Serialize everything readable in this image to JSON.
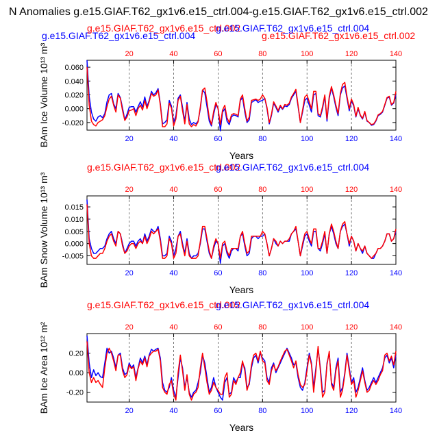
{
  "figure_title": "N Anomalies g.e15.GIAF.T62_gx1v6.e15_ctrl.004-g.e15.GIAF.T62_gx1v6.e15_ctrl.002",
  "colors": {
    "red": "#ff0000",
    "blue": "#0000ff",
    "black": "#000000",
    "grid": "#555555"
  },
  "chart_data": [
    {
      "type": "line",
      "ylabel": "BAm Ice Volume 10¹³ m³",
      "xlabel": "Years",
      "ylim": [
        -0.031,
        0.07
      ],
      "yticks": [
        -0.02,
        0.0,
        0.02,
        0.04,
        0.06
      ],
      "ytick_labels": [
        "-0.020",
        "0.000",
        "0.020",
        "0.040",
        "0.060"
      ],
      "xlim": [
        1,
        140
      ],
      "xticks": [
        20,
        40,
        60,
        80,
        100,
        120,
        140
      ],
      "xtick_labels": [
        "20",
        "40",
        "60",
        "80",
        "100",
        "120",
        "140"
      ],
      "grid_x": [
        20,
        40,
        60,
        80,
        100,
        120
      ],
      "top_labels": {
        "red": "g.e15.GIAF.T62_gx1v6.e15_ctrl.002",
        "blue": "g.e15.GIAF.T62_gx1v6.e15_ctrl.004"
      },
      "series": [
        {
          "name": "g.e15.GIAF.T62_gx1v6.e15_ctrl.004",
          "color": "blue",
          "values": [
            0.07,
            0.018,
            -0.005,
            -0.015,
            -0.018,
            -0.012,
            -0.01,
            -0.013,
            -0.007,
            0.01,
            0.02,
            0.022,
            0.007,
            0.0,
            0.022,
            0.016,
            0.001,
            -0.016,
            -0.008,
            0.002,
            0.003,
            0.003,
            -0.005,
            0.003,
            0.01,
            0.002,
            0.017,
            0.003,
            0.012,
            0.025,
            0.02,
            0.023,
            0.029,
            0.007,
            -0.022,
            -0.02,
            -0.016,
            0.012,
            0.004,
            -0.02,
            -0.01,
            0.015,
            0.02,
            0.002,
            -0.018,
            0.009,
            -0.015,
            -0.023,
            -0.02,
            -0.022,
            -0.018,
            0.0,
            0.027,
            0.023,
            0.003,
            -0.018,
            -0.025,
            -0.008,
            0.006,
            0.0,
            -0.032,
            -0.005,
            0.0,
            -0.018,
            -0.023,
            -0.012,
            -0.009,
            -0.01,
            -0.012,
            0.012,
            0.016,
            -0.005,
            -0.02,
            -0.016,
            0.009,
            0.011,
            0.013,
            0.009,
            0.011,
            0.012,
            0.015,
            0.0,
            -0.022,
            -0.01,
            0.008,
            0.002,
            -0.005,
            0.003,
            -0.001,
            0.004,
            0.003,
            0.006,
            0.015,
            0.02,
            0.025,
            0.003,
            -0.02,
            -0.005,
            0.012,
            0.015,
            0.005,
            -0.005,
            0.02,
            0.022,
            -0.01,
            -0.012,
            0.0,
            0.018,
            -0.018,
            0.015,
            0.03,
            0.017,
            0.002,
            -0.01,
            0.02,
            0.03,
            0.033,
            0.015,
            -0.003,
            0.012,
            0.004,
            -0.012,
            0.0,
            -0.01,
            -0.015,
            -0.005,
            -0.018,
            -0.02,
            -0.024,
            -0.023,
            -0.018,
            -0.01,
            -0.008,
            -0.005,
            0.005,
            0.015,
            0.017,
            0.005,
            0.008,
            0.02
          ]
        },
        {
          "name": "g.e15.GIAF.T62_gx1v6.e15_ctrl.002",
          "color": "red",
          "values": [
            0.06,
            0.005,
            -0.018,
            -0.023,
            -0.025,
            -0.02,
            -0.018,
            -0.016,
            -0.01,
            0.003,
            0.014,
            0.018,
            0.005,
            -0.005,
            0.02,
            0.015,
            -0.003,
            -0.017,
            -0.012,
            -0.003,
            -0.002,
            0.0,
            -0.01,
            0.0,
            0.005,
            -0.002,
            0.012,
            0.0,
            0.01,
            0.022,
            0.018,
            0.02,
            0.027,
            0.005,
            -0.026,
            -0.026,
            -0.022,
            0.008,
            0.001,
            -0.025,
            -0.015,
            0.012,
            0.018,
            -0.003,
            -0.022,
            0.006,
            -0.022,
            -0.026,
            -0.023,
            -0.025,
            -0.019,
            0.003,
            0.027,
            0.03,
            0.01,
            -0.013,
            -0.023,
            -0.004,
            0.009,
            0.0,
            -0.023,
            -0.002,
            0.005,
            -0.013,
            -0.02,
            -0.009,
            -0.007,
            -0.008,
            -0.01,
            0.014,
            0.02,
            0.0,
            -0.018,
            -0.012,
            0.012,
            0.013,
            0.014,
            0.012,
            0.014,
            0.02,
            0.015,
            0.002,
            -0.02,
            -0.008,
            0.01,
            0.004,
            -0.003,
            0.005,
            0.0,
            0.006,
            0.005,
            0.008,
            0.017,
            0.022,
            0.028,
            0.005,
            -0.02,
            -0.002,
            0.017,
            0.02,
            0.01,
            0.0,
            0.025,
            0.025,
            -0.007,
            -0.01,
            0.003,
            0.02,
            -0.015,
            0.018,
            0.032,
            0.02,
            0.005,
            -0.007,
            0.022,
            0.035,
            0.038,
            0.018,
            0.0,
            0.014,
            0.006,
            -0.011,
            0.002,
            -0.009,
            -0.014,
            -0.004,
            -0.017,
            -0.02,
            -0.023,
            -0.022,
            -0.017,
            -0.009,
            -0.007,
            -0.004,
            0.006,
            0.016,
            0.018,
            0.006,
            0.009,
            0.025
          ]
        }
      ]
    },
    {
      "type": "line",
      "ylabel": "BAm Snow Volume 10¹³ m³",
      "xlabel": "Years",
      "ylim": [
        -0.0085,
        0.0195
      ],
      "yticks": [
        -0.005,
        0.0,
        0.005,
        0.01,
        0.015
      ],
      "ytick_labels": [
        "-0.005",
        "0.000",
        "0.005",
        "0.010",
        "0.015"
      ],
      "xlim": [
        1,
        140
      ],
      "xticks": [
        20,
        40,
        60,
        80,
        100,
        120,
        140
      ],
      "xtick_labels": [
        "20",
        "40",
        "60",
        "80",
        "100",
        "120",
        "140"
      ],
      "grid_x": [
        20,
        40,
        60,
        80,
        100,
        120
      ],
      "top_labels": {
        "red": "g.e15.GIAF.T62_gx1v6.e15_ctrl.002",
        "blue": "g.e15.GIAF.T62_gx1v6.e15_ctrl.004"
      },
      "series": [
        {
          "name": "g.e15.GIAF.T62_gx1v6.e15_ctrl.004",
          "color": "blue",
          "values": [
            0.018,
            0.002,
            -0.002,
            -0.004,
            -0.004,
            -0.003,
            -0.002,
            -0.002,
            -0.001,
            0.002,
            0.004,
            0.005,
            0.002,
            0.0,
            0.005,
            0.004,
            0.0,
            -0.004,
            -0.002,
            0.0,
            0.001,
            0.001,
            -0.001,
            0.001,
            0.002,
            0.0,
            0.004,
            0.001,
            0.003,
            0.006,
            0.005,
            0.005,
            0.007,
            0.002,
            -0.005,
            -0.005,
            -0.004,
            0.003,
            0.001,
            -0.005,
            -0.002,
            0.003,
            0.005,
            0.0,
            -0.004,
            0.002,
            -0.004,
            -0.006,
            -0.005,
            -0.005,
            -0.004,
            0.0,
            0.006,
            0.006,
            0.001,
            -0.004,
            -0.006,
            -0.002,
            0.001,
            0.0,
            -0.008,
            -0.001,
            0.0,
            -0.004,
            -0.006,
            -0.003,
            -0.002,
            -0.002,
            -0.003,
            0.003,
            0.004,
            -0.001,
            -0.005,
            -0.004,
            0.002,
            0.003,
            0.003,
            0.002,
            0.003,
            0.003,
            0.004,
            0.0,
            -0.005,
            -0.002,
            0.002,
            0.0,
            -0.001,
            0.001,
            0.0,
            0.001,
            0.001,
            0.001,
            0.004,
            0.005,
            0.006,
            0.001,
            -0.005,
            -0.001,
            0.003,
            0.004,
            0.001,
            -0.001,
            0.005,
            0.005,
            -0.002,
            -0.003,
            0.0,
            0.004,
            -0.004,
            0.004,
            0.007,
            0.004,
            0.0,
            -0.002,
            0.005,
            0.007,
            0.008,
            0.004,
            -0.001,
            0.003,
            0.001,
            -0.003,
            0.0,
            -0.002,
            -0.004,
            -0.001,
            -0.004,
            -0.005,
            -0.006,
            -0.006,
            -0.004,
            -0.002,
            -0.002,
            -0.001,
            0.001,
            0.004,
            0.004,
            0.001,
            0.002,
            0.005
          ]
        },
        {
          "name": "g.e15.GIAF.T62_gx1v6.e15_ctrl.002",
          "color": "red",
          "values": [
            0.016,
            0.0,
            -0.005,
            -0.006,
            -0.006,
            -0.005,
            -0.004,
            -0.004,
            -0.002,
            0.001,
            0.003,
            0.004,
            0.001,
            -0.001,
            0.005,
            0.004,
            -0.001,
            -0.004,
            -0.003,
            -0.001,
            0.0,
            0.0,
            -0.002,
            0.0,
            0.001,
            0.0,
            0.003,
            0.0,
            0.002,
            0.005,
            0.004,
            0.005,
            0.006,
            0.001,
            -0.006,
            -0.006,
            -0.005,
            0.002,
            0.0,
            -0.006,
            -0.004,
            0.003,
            0.004,
            -0.001,
            -0.005,
            0.001,
            -0.005,
            -0.006,
            -0.006,
            -0.006,
            -0.005,
            0.001,
            0.007,
            0.007,
            0.002,
            -0.003,
            -0.006,
            -0.001,
            0.002,
            0.0,
            -0.006,
            0.0,
            0.001,
            -0.003,
            -0.005,
            -0.002,
            -0.002,
            -0.002,
            -0.002,
            0.003,
            0.005,
            0.0,
            -0.004,
            -0.003,
            0.003,
            0.003,
            0.003,
            0.003,
            0.003,
            0.005,
            0.004,
            0.0,
            -0.005,
            -0.002,
            0.002,
            0.001,
            -0.001,
            0.001,
            0.0,
            0.001,
            0.001,
            0.002,
            0.004,
            0.005,
            0.007,
            0.001,
            -0.005,
            0.0,
            0.004,
            0.005,
            0.002,
            0.0,
            0.006,
            0.006,
            -0.002,
            -0.002,
            0.001,
            0.005,
            -0.004,
            0.004,
            0.008,
            0.005,
            0.001,
            -0.002,
            0.005,
            0.008,
            0.009,
            0.004,
            0.0,
            0.003,
            0.001,
            -0.003,
            0.0,
            -0.002,
            -0.003,
            -0.001,
            -0.004,
            -0.005,
            -0.006,
            -0.005,
            -0.004,
            -0.002,
            -0.002,
            -0.001,
            0.001,
            0.004,
            0.004,
            0.001,
            0.002,
            0.006
          ]
        }
      ]
    },
    {
      "type": "line",
      "ylabel": "BAm Ice Area 10¹² m²",
      "xlabel": "Years",
      "ylim": [
        -0.3,
        0.4
      ],
      "yticks": [
        -0.2,
        0.0,
        0.2
      ],
      "ytick_labels": [
        "-0.20",
        "0.00",
        "0.20"
      ],
      "xlim": [
        1,
        140
      ],
      "xticks": [
        20,
        40,
        60,
        80,
        100,
        120,
        140
      ],
      "xtick_labels": [
        "20",
        "40",
        "60",
        "80",
        "100",
        "120",
        "140"
      ],
      "grid_x": [
        20,
        40,
        60,
        80,
        100,
        120
      ],
      "top_labels": {
        "red": "g.e15.GIAF.T62_gx1v6.e15_ctrl.002",
        "blue": "g.e15.GIAF.T62_gx1v6.e15_ctrl.004"
      },
      "series": [
        {
          "name": "g.e15.GIAF.T62_gx1v6.e15_ctrl.004",
          "color": "blue",
          "values": [
            0.38,
            0.1,
            -0.05,
            0.03,
            -0.03,
            0.0,
            -0.04,
            -0.05,
            0.1,
            0.25,
            0.2,
            0.22,
            0.15,
            0.05,
            0.18,
            0.2,
            0.05,
            -0.02,
            0.0,
            0.1,
            0.05,
            0.08,
            -0.05,
            0.05,
            0.15,
            0.1,
            0.17,
            0.08,
            0.18,
            0.24,
            0.22,
            0.24,
            0.25,
            0.15,
            -0.1,
            -0.18,
            -0.2,
            -0.15,
            -0.05,
            -0.18,
            -0.25,
            -0.05,
            0.15,
            0.05,
            -0.15,
            -0.05,
            -0.2,
            -0.25,
            -0.2,
            -0.18,
            -0.1,
            0.0,
            0.18,
            0.1,
            -0.05,
            -0.2,
            -0.15,
            -0.05,
            -0.15,
            -0.2,
            -0.25,
            -0.28,
            -0.1,
            -0.05,
            -0.22,
            -0.2,
            -0.05,
            -0.1,
            -0.05,
            -0.05,
            0.1,
            0.05,
            -0.15,
            -0.12,
            0.05,
            0.15,
            0.18,
            0.1,
            0.2,
            0.15,
            0.12,
            -0.05,
            -0.1,
            0.05,
            0.1,
            0.0,
            0.05,
            0.1,
            0.15,
            0.2,
            0.25,
            0.2,
            0.15,
            0.08,
            0.1,
            -0.05,
            -0.15,
            -0.18,
            -0.1,
            0.05,
            0.2,
            0.1,
            -0.15,
            0.05,
            0.25,
            0.05,
            -0.2,
            -0.18,
            0.1,
            0.2,
            -0.1,
            -0.15,
            0.05,
            0.15,
            -0.2,
            -0.15,
            0.0,
            0.2,
            0.05,
            -0.1,
            -0.05,
            -0.2,
            -0.15,
            -0.05,
            0.05,
            -0.08,
            -0.18,
            -0.15,
            -0.1,
            -0.05,
            -0.1,
            -0.05,
            0.0,
            0.05,
            0.15,
            0.18,
            0.1,
            0.15,
            0.05,
            0.18
          ]
        },
        {
          "name": "g.e15.GIAF.T62_gx1v6.e15_ctrl.002",
          "color": "red",
          "values": [
            0.32,
            0.0,
            -0.1,
            -0.05,
            -0.1,
            -0.08,
            -0.12,
            -0.15,
            0.05,
            0.2,
            0.25,
            0.2,
            0.12,
            0.02,
            0.18,
            0.18,
            0.02,
            -0.05,
            -0.02,
            0.08,
            0.04,
            0.06,
            -0.08,
            0.04,
            0.12,
            0.08,
            0.15,
            0.06,
            0.17,
            0.2,
            0.22,
            0.22,
            0.24,
            0.12,
            -0.15,
            -0.2,
            -0.22,
            -0.12,
            -0.08,
            -0.22,
            -0.28,
            0.0,
            0.18,
            0.02,
            -0.18,
            -0.02,
            -0.22,
            -0.28,
            -0.22,
            -0.2,
            -0.15,
            0.05,
            0.2,
            0.05,
            -0.1,
            -0.22,
            -0.18,
            -0.1,
            -0.15,
            -0.18,
            -0.22,
            -0.22,
            -0.05,
            0.0,
            -0.25,
            -0.22,
            -0.08,
            -0.12,
            -0.05,
            0.0,
            0.12,
            0.02,
            -0.18,
            -0.1,
            0.08,
            0.18,
            0.2,
            0.12,
            0.22,
            0.12,
            0.1,
            -0.08,
            -0.12,
            0.02,
            0.08,
            0.02,
            0.06,
            0.12,
            0.17,
            0.22,
            0.24,
            0.18,
            0.12,
            0.05,
            0.12,
            -0.02,
            -0.12,
            -0.15,
            -0.12,
            0.02,
            0.18,
            0.08,
            -0.2,
            0.02,
            0.27,
            0.02,
            -0.25,
            -0.2,
            0.08,
            0.22,
            -0.12,
            -0.18,
            0.02,
            0.12,
            -0.25,
            -0.18,
            -0.02,
            0.18,
            0.02,
            -0.12,
            -0.08,
            -0.25,
            -0.18,
            -0.08,
            0.02,
            -0.1,
            -0.2,
            -0.18,
            -0.12,
            -0.08,
            -0.12,
            -0.08,
            -0.02,
            0.02,
            0.18,
            0.2,
            0.12,
            0.17,
            0.08,
            0.22
          ]
        }
      ]
    }
  ]
}
